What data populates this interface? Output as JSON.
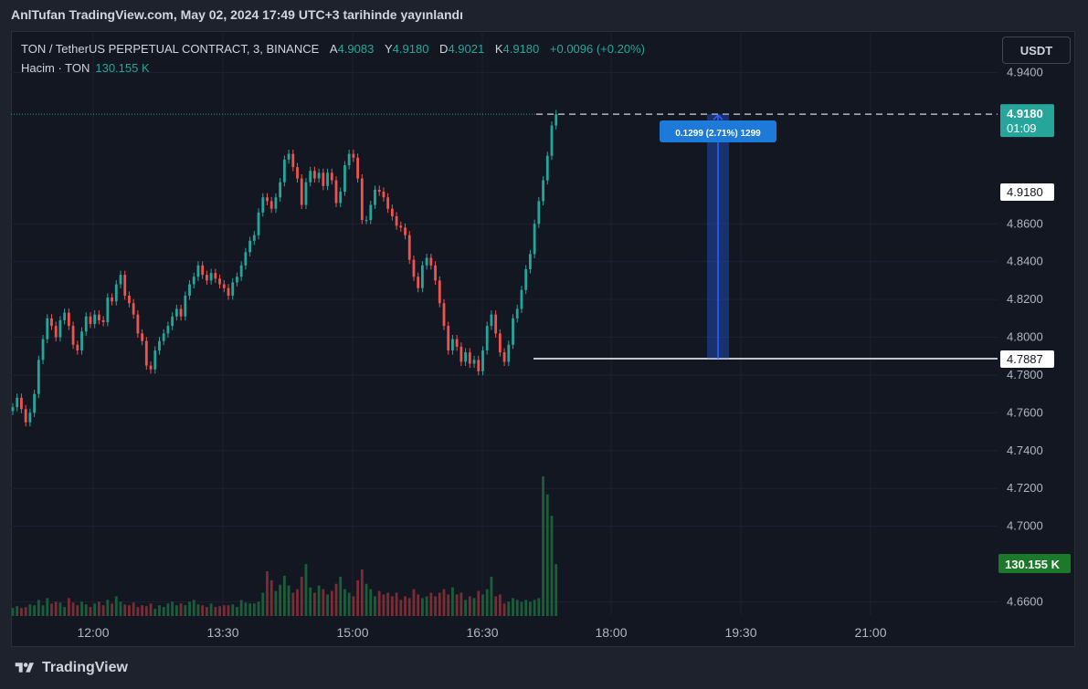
{
  "header": {
    "published": "AnlTufan TradingView.com, May 02, 2024 17:49 UTC+3 tarihinde yayınlandı"
  },
  "legend": {
    "symbol": "TON / TetherUS PERPETUAL CONTRACT, 3, BINANCE",
    "a_label": "A",
    "a_value": "4.9083",
    "y_label": "Y",
    "y_value": "4.9180",
    "d_label": "D",
    "d_value": "4.9021",
    "k_label": "K",
    "k_value": "4.9180",
    "change": "+0.0096 (+0.20%)"
  },
  "volume_legend": {
    "label": "Hacim · TON",
    "value": "130.155 K"
  },
  "currency": "USDT",
  "footer": {
    "brand": "TradingView"
  },
  "colors": {
    "up": "#26a69a",
    "down": "#ef5350",
    "accent": "#2962ff",
    "background": "#131722"
  },
  "chart_data": {
    "type": "candlestick",
    "y_ticks": [
      "4.9400",
      "4.8600",
      "4.8400",
      "4.8200",
      "4.8000",
      "4.7800",
      "4.7600",
      "4.7400",
      "4.7200",
      "4.7000",
      "4.6600"
    ],
    "ylim": [
      4.653,
      4.962
    ],
    "x_ticks": [
      "12:00",
      "13:30",
      "15:00",
      "16:30",
      "18:00",
      "19:30",
      "21:00"
    ],
    "last_price": "4.9180",
    "countdown": "01:09",
    "price_line_label": "4.9180",
    "horizontal_line": "4.7887",
    "volume_label": "130.155 K",
    "measure_label": "0.1299 (2.71%) 1299",
    "closes": [
      4.763,
      4.768,
      4.762,
      4.755,
      4.76,
      4.77,
      4.788,
      4.799,
      4.81,
      4.806,
      4.8,
      4.809,
      4.813,
      4.806,
      4.796,
      4.793,
      4.803,
      4.811,
      4.807,
      4.812,
      4.809,
      4.808,
      4.821,
      4.819,
      4.828,
      4.833,
      4.822,
      4.818,
      4.812,
      4.802,
      4.798,
      4.785,
      4.783,
      4.793,
      4.798,
      4.802,
      4.806,
      4.811,
      4.815,
      4.811,
      4.822,
      4.828,
      4.832,
      4.838,
      4.833,
      4.83,
      4.834,
      4.831,
      4.828,
      4.826,
      4.822,
      4.829,
      4.832,
      4.838,
      4.845,
      4.851,
      4.854,
      4.866,
      4.874,
      4.872,
      4.868,
      4.874,
      4.882,
      4.894,
      4.897,
      4.89,
      4.884,
      4.87,
      4.882,
      4.888,
      4.884,
      4.887,
      4.88,
      4.887,
      4.883,
      4.871,
      4.877,
      4.891,
      4.897,
      4.895,
      4.884,
      4.862,
      4.862,
      4.87,
      4.878,
      4.877,
      4.874,
      4.868,
      4.864,
      4.859,
      4.858,
      4.854,
      4.841,
      4.832,
      4.826,
      4.838,
      4.842,
      4.838,
      4.83,
      4.818,
      4.806,
      4.793,
      4.799,
      4.795,
      4.787,
      4.792,
      4.786,
      4.788,
      4.782,
      4.793,
      4.806,
      4.812,
      4.802,
      4.792,
      4.787,
      4.796,
      4.81,
      4.815,
      4.825,
      4.836,
      4.844,
      4.86,
      4.872,
      4.883,
      4.896,
      4.912,
      4.918
    ],
    "volumes": [
      9,
      11,
      9,
      10,
      13,
      12,
      18,
      12,
      20,
      14,
      16,
      15,
      10,
      20,
      15,
      12,
      16,
      13,
      10,
      14,
      16,
      12,
      18,
      14,
      22,
      16,
      13,
      12,
      15,
      10,
      12,
      11,
      14,
      8,
      12,
      10,
      14,
      16,
      12,
      14,
      12,
      16,
      18,
      13,
      12,
      10,
      14,
      10,
      11,
      12,
      12,
      13,
      10,
      18,
      15,
      14,
      14,
      16,
      26,
      50,
      40,
      28,
      35,
      45,
      34,
      26,
      30,
      44,
      58,
      32,
      26,
      34,
      30,
      24,
      28,
      36,
      44,
      30,
      26,
      22,
      40,
      52,
      36,
      30,
      22,
      28,
      24,
      26,
      22,
      26,
      18,
      22,
      20,
      30,
      24,
      20,
      22,
      26,
      22,
      26,
      30,
      24,
      32,
      24,
      26,
      18,
      22,
      20,
      28,
      24,
      30,
      44,
      22,
      24,
      14,
      16,
      20,
      18,
      16,
      18,
      16,
      18,
      20,
      156,
      136,
      112,
      58
    ]
  }
}
